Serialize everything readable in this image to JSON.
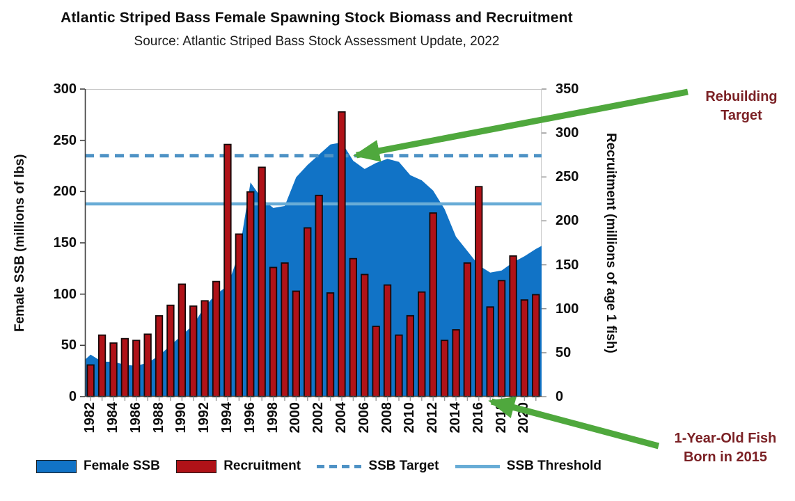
{
  "title": "Atlantic Striped Bass Female Spawning Stock Biomass and Recruitment",
  "subtitle": "Source: Atlantic Striped Bass Stock Assessment Update, 2022",
  "left_axis": {
    "title": "Female SSB (millions of lbs)",
    "ticks": [
      0,
      50,
      100,
      150,
      200,
      250,
      300
    ]
  },
  "right_axis": {
    "title": "Recruitment (millions of age 1 fish)",
    "ticks": [
      0,
      50,
      100,
      150,
      200,
      250,
      300,
      350
    ]
  },
  "x_axis": {
    "labeled_years": [
      1982,
      1984,
      1986,
      1988,
      1990,
      1992,
      1994,
      1996,
      1998,
      2000,
      2002,
      2004,
      2006,
      2008,
      2010,
      2012,
      2014,
      2016,
      2018,
      2020
    ]
  },
  "legend": {
    "items": [
      {
        "label": "Female SSB",
        "type": "area-swatch"
      },
      {
        "label": "Recruitment",
        "type": "bar-swatch"
      },
      {
        "label": "SSB Target",
        "type": "dashed-line"
      },
      {
        "label": "SSB Threshold",
        "type": "solid-line"
      }
    ]
  },
  "annotations": [
    {
      "text": "Rebuilding\nTarget"
    },
    {
      "text": "1-Year-Old Fish\nBorn in 2015"
    }
  ],
  "colors": {
    "area_blue": "#1173C6",
    "bar_red": "#B01218",
    "bar_border": "#160909",
    "target_dashed": "#4E92C5",
    "threshold_solid": "#68ACD6",
    "arrow_green": "#4FA83D",
    "annotation_maroon": "#7B2125"
  },
  "chart_data": {
    "type": "combo",
    "x": [
      1982,
      1983,
      1984,
      1985,
      1986,
      1987,
      1988,
      1989,
      1990,
      1991,
      1992,
      1993,
      1994,
      1995,
      1996,
      1997,
      1998,
      1999,
      2000,
      2001,
      2002,
      2003,
      2004,
      2005,
      2006,
      2007,
      2008,
      2009,
      2010,
      2011,
      2012,
      2013,
      2014,
      2015,
      2016,
      2017,
      2018,
      2019,
      2020,
      2021
    ],
    "series": [
      {
        "name": "Female SSB",
        "type": "area",
        "axis": "left",
        "units": "millions of lbs",
        "edge_start": 36,
        "edge_end": 147,
        "values": [
          41,
          34,
          34,
          31,
          30,
          33,
          40,
          50,
          60,
          70,
          88,
          100,
          108,
          140,
          209,
          193,
          184,
          186,
          214,
          226,
          236,
          246,
          248,
          230,
          222,
          228,
          232,
          229,
          216,
          211,
          201,
          183,
          156,
          142,
          128,
          121,
          123,
          131,
          137,
          144
        ]
      },
      {
        "name": "Recruitment",
        "type": "bar",
        "axis": "right",
        "units": "millions of age 1 fish",
        "values": [
          36,
          70,
          61,
          66,
          64,
          71,
          92,
          104,
          128,
          103,
          109,
          131,
          287,
          185,
          233,
          261,
          147,
          152,
          120,
          192,
          229,
          118,
          324,
          157,
          139,
          80,
          127,
          70,
          92,
          119,
          209,
          64,
          76,
          152,
          239,
          102,
          132,
          160,
          110,
          116
        ]
      }
    ],
    "reference_lines": [
      {
        "name": "SSB Target",
        "axis": "left",
        "value": 235,
        "style": "dashed"
      },
      {
        "name": "SSB Threshold",
        "axis": "left",
        "value": 188,
        "style": "solid"
      }
    ],
    "left_ylim": [
      0,
      300
    ],
    "right_ylim": [
      0,
      350
    ],
    "grid": false,
    "legend_position": "bottom"
  }
}
